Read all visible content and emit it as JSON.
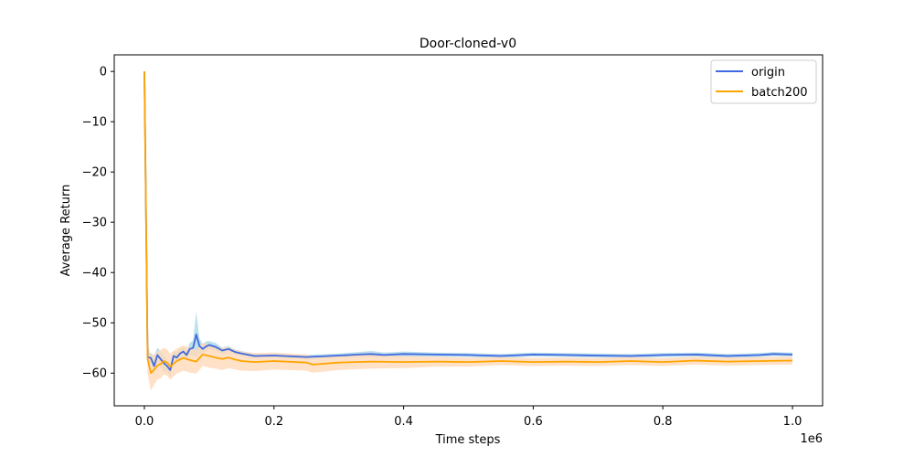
{
  "chart_data": {
    "type": "line",
    "title": "Door-cloned-v0",
    "xlabel": "Time steps",
    "ylabel": "Average Return",
    "x_offset_label": "1e6",
    "xlim": [
      -0.0465,
      1.0465
    ],
    "ylim": [
      -66.5,
      3.3
    ],
    "x_ticks": [
      0.0,
      0.2,
      0.4,
      0.6,
      0.8,
      1.0
    ],
    "x_tick_labels": [
      "0.0",
      "0.2",
      "0.4",
      "0.6",
      "0.8",
      "1.0"
    ],
    "y_ticks": [
      0,
      -10,
      -20,
      -30,
      -40,
      -50,
      -60
    ],
    "y_tick_labels": [
      "0",
      "−10",
      "−20",
      "−30",
      "−40",
      "−50",
      "−60"
    ],
    "legend_position": "top-right",
    "grid": false,
    "series": [
      {
        "name": "origin",
        "color": "#4169e1",
        "band_color": "#add8e6",
        "x": [
          0.0,
          0.005,
          0.01,
          0.015,
          0.02,
          0.025,
          0.03,
          0.035,
          0.04,
          0.045,
          0.05,
          0.055,
          0.06,
          0.065,
          0.07,
          0.075,
          0.08,
          0.085,
          0.09,
          0.095,
          0.1,
          0.11,
          0.12,
          0.13,
          0.14,
          0.15,
          0.17,
          0.2,
          0.25,
          0.3,
          0.33,
          0.35,
          0.37,
          0.4,
          0.45,
          0.5,
          0.55,
          0.6,
          0.65,
          0.7,
          0.75,
          0.8,
          0.85,
          0.9,
          0.95,
          0.97,
          1.0
        ],
        "values": [
          0,
          -56.8,
          -57.0,
          -58.6,
          -56.4,
          -57.2,
          -58.0,
          -58.6,
          -59.4,
          -56.6,
          -56.9,
          -56.1,
          -55.7,
          -56.4,
          -55.2,
          -55.0,
          -52.3,
          -54.6,
          -55.2,
          -54.7,
          -54.4,
          -54.8,
          -55.5,
          -55.2,
          -55.8,
          -56.1,
          -56.6,
          -56.5,
          -56.8,
          -56.5,
          -56.3,
          -56.2,
          -56.4,
          -56.2,
          -56.3,
          -56.4,
          -56.6,
          -56.3,
          -56.4,
          -56.5,
          -56.6,
          -56.4,
          -56.3,
          -56.6,
          -56.4,
          -56.2,
          -56.3
        ],
        "band": [
          0,
          1.0,
          1.0,
          2.0,
          1.5,
          1.5,
          1.8,
          1.2,
          1.3,
          1.0,
          1.0,
          1.0,
          1.0,
          1.0,
          1.2,
          1.5,
          4.5,
          1.5,
          1.0,
          1.0,
          0.8,
          0.8,
          0.6,
          0.6,
          0.5,
          0.5,
          0.4,
          0.4,
          0.4,
          0.4,
          0.5,
          0.6,
          0.5,
          0.5,
          0.4,
          0.4,
          0.4,
          0.4,
          0.4,
          0.4,
          0.4,
          0.4,
          0.4,
          0.4,
          0.4,
          0.4,
          0.4
        ]
      },
      {
        "name": "batch200",
        "color": "#ffa500",
        "band_color": "#ffdab9",
        "x": [
          0.0,
          0.005,
          0.01,
          0.015,
          0.02,
          0.025,
          0.03,
          0.035,
          0.04,
          0.05,
          0.06,
          0.07,
          0.08,
          0.09,
          0.1,
          0.11,
          0.12,
          0.13,
          0.14,
          0.15,
          0.17,
          0.2,
          0.25,
          0.26,
          0.3,
          0.35,
          0.4,
          0.45,
          0.5,
          0.55,
          0.6,
          0.65,
          0.7,
          0.75,
          0.8,
          0.85,
          0.9,
          0.95,
          1.0
        ],
        "values": [
          0,
          -57.2,
          -60.0,
          -59.3,
          -58.5,
          -58.2,
          -57.6,
          -57.9,
          -58.7,
          -57.6,
          -57.0,
          -57.4,
          -57.7,
          -56.3,
          -56.6,
          -56.9,
          -57.2,
          -56.9,
          -57.3,
          -57.6,
          -57.8,
          -57.6,
          -57.9,
          -58.3,
          -57.9,
          -57.7,
          -57.8,
          -57.7,
          -57.8,
          -57.6,
          -57.8,
          -57.7,
          -57.8,
          -57.6,
          -57.8,
          -57.5,
          -57.7,
          -57.6,
          -57.5
        ],
        "band": [
          0,
          3.0,
          3.5,
          3.0,
          2.8,
          2.8,
          2.7,
          2.6,
          2.6,
          2.5,
          2.5,
          2.5,
          2.4,
          2.3,
          2.3,
          2.2,
          2.2,
          2.1,
          2.0,
          1.9,
          1.8,
          1.7,
          1.6,
          1.6,
          1.5,
          1.4,
          1.2,
          1.0,
          0.9,
          0.8,
          0.8,
          0.8,
          0.8,
          0.8,
          0.8,
          0.8,
          0.8,
          0.8,
          0.8
        ]
      }
    ]
  }
}
